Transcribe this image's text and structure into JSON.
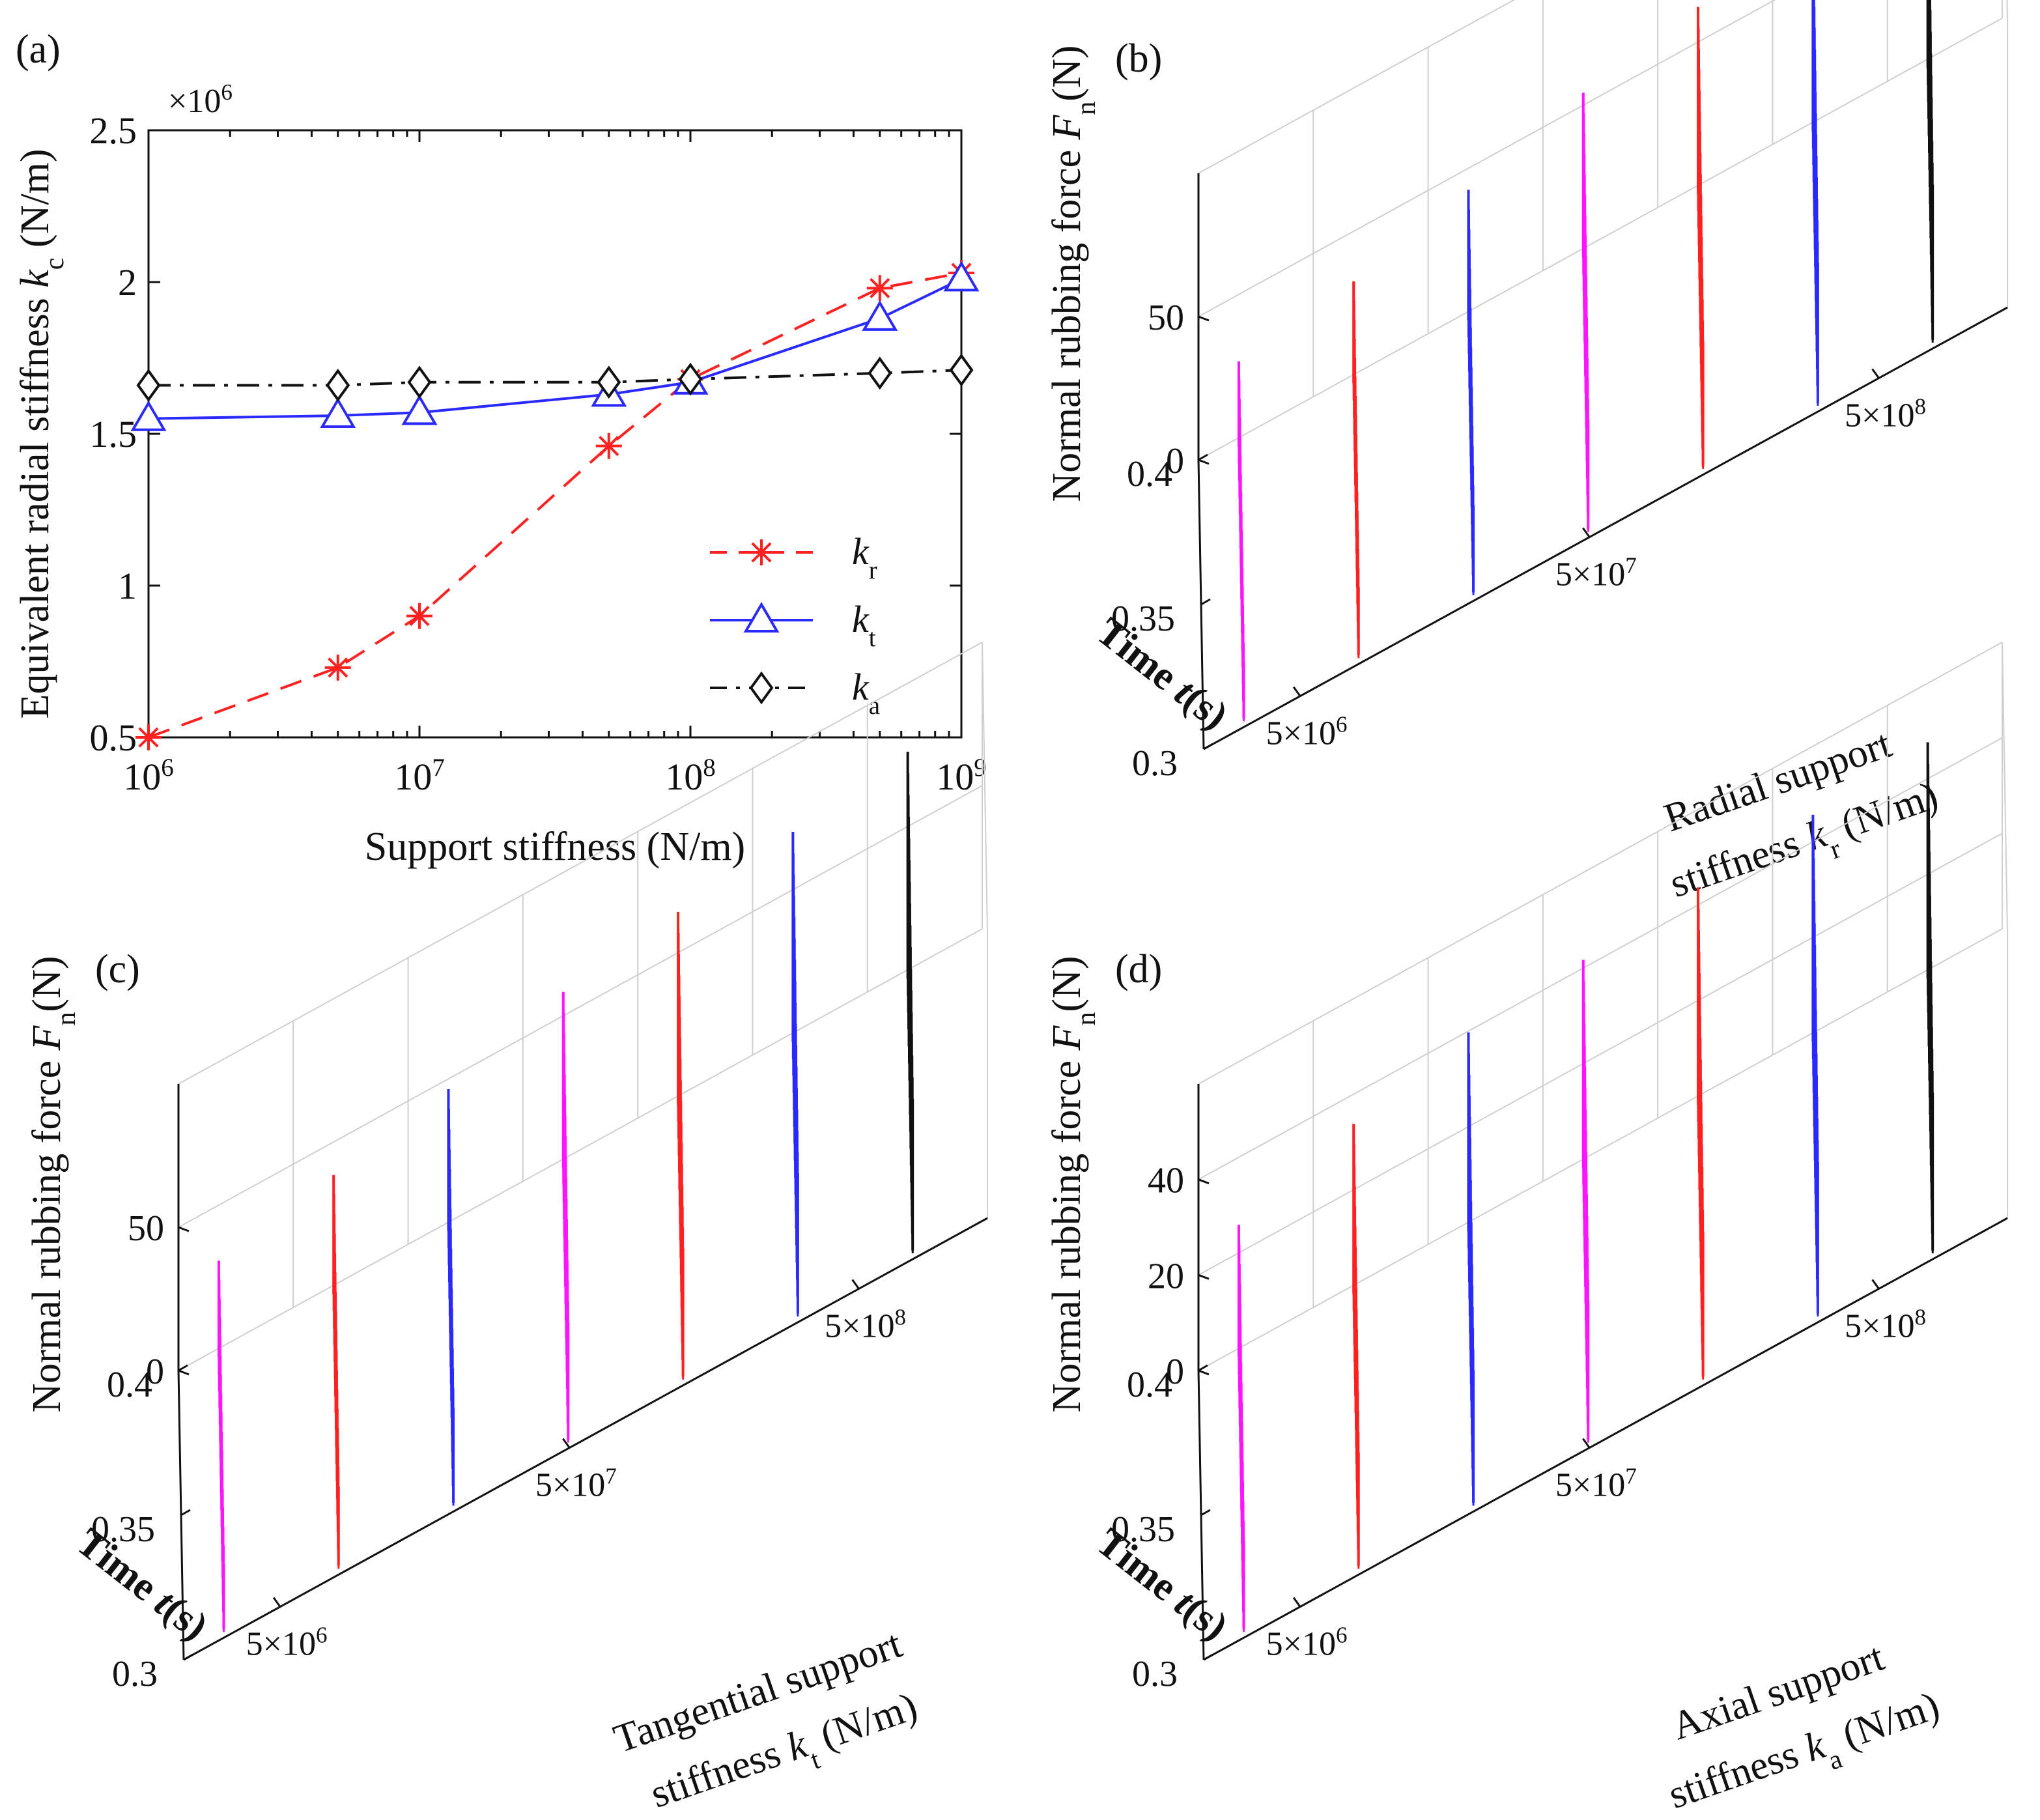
{
  "chart_data": [
    {
      "id": "a",
      "type": "line",
      "panel_label": "(a)",
      "xscale": "log",
      "x": [
        1000000,
        5000000,
        10000000,
        50000000,
        100000000,
        500000000,
        1000000000
      ],
      "xlim": [
        1000000,
        1000000000
      ],
      "ylim": [
        0.5,
        2.5
      ],
      "yticks": [
        0.5,
        1,
        1.5,
        2,
        2.5
      ],
      "ytick_labels": [
        "0.5",
        "1",
        "1.5",
        "2",
        "2.5"
      ],
      "xtick_exponents": [
        "6",
        "7",
        "8",
        "9"
      ],
      "y_exponent": "×10",
      "y_exponent_power": "6",
      "xlabel": "Support stiffness (N/m)",
      "ylabel": "Equivalent radial stiffness",
      "ylabel_var": "k",
      "ylabel_sub": "c",
      "ylabel_unit": " (N/m)",
      "legend_position": "lower-right",
      "series": [
        {
          "name": "k",
          "sub": "r",
          "color": "#ff2020",
          "marker": "star",
          "dash": "dashed",
          "values": [
            0.5,
            0.73,
            0.9,
            1.46,
            1.68,
            1.98,
            2.03
          ]
        },
        {
          "name": "k",
          "sub": "t",
          "color": "#2a2aff",
          "marker": "triangle",
          "dash": "solid",
          "values": [
            1.55,
            1.56,
            1.57,
            1.63,
            1.67,
            1.88,
            2.01
          ]
        },
        {
          "name": "k",
          "sub": "a",
          "color": "#111111",
          "marker": "diamond",
          "dash": "dashdot",
          "values": [
            1.66,
            1.66,
            1.67,
            1.67,
            1.68,
            1.7,
            1.71
          ]
        }
      ]
    },
    {
      "id": "b",
      "type": "waterfall3d",
      "panel_label": "(b)",
      "zlabel": "Normal rubbing force",
      "zlabel_var": "F",
      "zlabel_sub": "n",
      "zlabel_unit": "(N)",
      "zlim": [
        0,
        100
      ],
      "zticks": [
        0,
        50
      ],
      "ztick_labels": [
        "0",
        "50"
      ],
      "time_label": "Time",
      "time_var": "t",
      "time_unit": "(s)",
      "time_ticks": [
        "0.4",
        "0.35",
        "0.3"
      ],
      "stiff_ticks_base": "5×10",
      "stiff_ticks_pow": [
        "6",
        "7",
        "8"
      ],
      "stiff_label_line1": "Radial support",
      "stiff_label_line2": "stiffness",
      "stiff_var": "k",
      "stiff_sub": "r",
      "stiff_unit": " (N/m)",
      "series_colors": [
        "#ff14ff",
        "#ff2020",
        "#2a2aff",
        "#ff14ff",
        "#ff2020",
        "#2a2aff",
        "#111111"
      ],
      "peak_amplitudes": [
        30,
        36,
        46,
        58,
        66,
        74,
        82
      ]
    },
    {
      "id": "c",
      "type": "waterfall3d",
      "panel_label": "(c)",
      "zlabel": "Normal rubbing force",
      "zlabel_var": "F",
      "zlabel_sub": "n",
      "zlabel_unit": "(N)",
      "zlim": [
        0,
        100
      ],
      "zticks": [
        0,
        50
      ],
      "ztick_labels": [
        "0",
        "50"
      ],
      "time_label": "Time",
      "time_var": "t",
      "time_unit": "(s)",
      "time_ticks": [
        "0.4",
        "0.35",
        "0.3"
      ],
      "stiff_ticks_base": "5×10",
      "stiff_ticks_pow": [
        "6",
        "7",
        "8"
      ],
      "stiff_label_line1": "Tangential support",
      "stiff_label_line2": "stiffness",
      "stiff_var": "k",
      "stiff_sub": "t",
      "stiff_unit": " (N/m)",
      "series_colors": [
        "#ff14ff",
        "#ff2020",
        "#2a2aff",
        "#ff14ff",
        "#ff2020",
        "#2a2aff",
        "#111111"
      ],
      "peak_amplitudes": [
        34,
        42,
        50,
        62,
        68,
        74,
        80
      ]
    },
    {
      "id": "d",
      "type": "waterfall3d",
      "panel_label": "(d)",
      "zlabel": "Normal rubbing force",
      "zlabel_var": "F",
      "zlabel_sub": "n",
      "zlabel_unit": "(N)",
      "zlim": [
        0,
        60
      ],
      "zticks": [
        0,
        20,
        40
      ],
      "ztick_labels": [
        "0",
        "20",
        "40"
      ],
      "time_label": "Time",
      "time_var": "t",
      "time_unit": "(s)",
      "time_ticks": [
        "0.4",
        "0.35",
        "0.3"
      ],
      "stiff_ticks_base": "5×10",
      "stiff_ticks_pow": [
        "6",
        "7",
        "8"
      ],
      "stiff_label_line1": "Axial support",
      "stiff_label_line2": "stiffness",
      "stiff_var": "k",
      "stiff_sub": "a",
      "stiff_unit": " (N/m)",
      "series_colors": [
        "#ff14ff",
        "#ff2020",
        "#2a2aff",
        "#ff14ff",
        "#ff2020",
        "#2a2aff",
        "#111111"
      ],
      "peak_amplitudes": [
        28,
        36,
        42,
        44,
        46,
        48,
        50
      ]
    }
  ]
}
